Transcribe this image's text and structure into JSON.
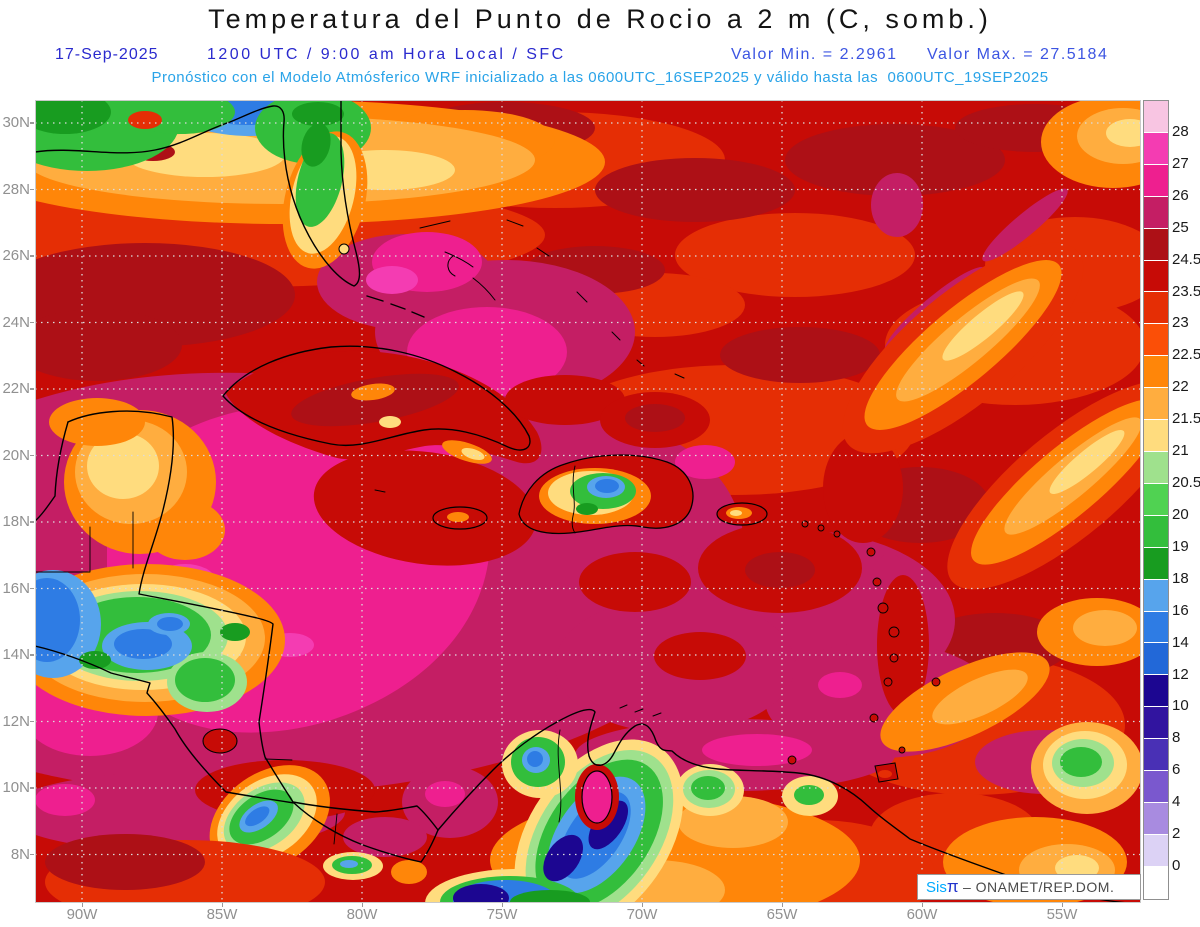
{
  "title": "Temperatura del Punto de Rocio a 2 m (C, somb.)",
  "header": {
    "date": "17-Sep-2025",
    "run_time": "1200 UTC / 9:00 am Hora Local / SFC",
    "valor_min": "Valor Min. = 2.2961",
    "valor_max": "Valor Max. = 27.5184",
    "forecast_line": "Pronóstico con el Modelo Atmósferico WRF inicializado a las 0600UTC_16SEP2025 y válido hasta las  0600UTC_19SEP2025"
  },
  "map": {
    "lat_labels": [
      "30N",
      "28N",
      "26N",
      "24N",
      "22N",
      "20N",
      "18N",
      "16N",
      "14N",
      "12N",
      "10N",
      "8N"
    ],
    "lon_labels": [
      "90W",
      "85W",
      "80W",
      "75W",
      "70W",
      "65W",
      "60W",
      "55W"
    ]
  },
  "colorbar": {
    "boundary_labels": [
      "28",
      "27",
      "26",
      "25",
      "24.5",
      "23.5",
      "23",
      "22.5",
      "22",
      "21.5",
      "21",
      "20.5",
      "20",
      "19",
      "18",
      "16",
      "14",
      "12",
      "10",
      "8",
      "6",
      "4",
      "2",
      "0"
    ],
    "segment_colors": [
      "#f8c5e2",
      "#f43cb2",
      "#ee1f8f",
      "#c41e64",
      "#ad1016",
      "#c70b06",
      "#e52e05",
      "#fb4f07",
      "#ff8609",
      "#ffad3f",
      "#ffdc7e",
      "#9fe18d",
      "#50d252",
      "#33be3c",
      "#189c20",
      "#57a4ec",
      "#2e7ce4",
      "#2268d8",
      "#1c0691",
      "#31149f",
      "#4930b5",
      "#7a58ce",
      "#a88be0",
      "#dcd2f5",
      "#ffffff"
    ]
  },
  "watermark": {
    "prefix": "Sis",
    "pi": "π",
    "suffix": " – ONAMET/REP.DOM."
  },
  "chart_data": {
    "type": "heatmap",
    "title": "Temperatura del Punto de Rocio a 2 m (C, somb.)",
    "x_ticks": [
      "90W",
      "85W",
      "80W",
      "75W",
      "70W",
      "65W",
      "60W",
      "55W"
    ],
    "y_ticks": [
      "30N",
      "28N",
      "26N",
      "24N",
      "22N",
      "20N",
      "18N",
      "16N",
      "14N",
      "12N",
      "10N",
      "8N"
    ],
    "colorbar_levels": [
      28,
      27,
      26,
      25,
      24.5,
      23.5,
      23,
      22.5,
      22,
      21.5,
      21,
      20.5,
      20,
      19,
      18,
      16,
      14,
      12,
      10,
      8,
      6,
      4,
      2,
      0
    ],
    "value_min": 2.2961,
    "value_max": 27.5184
  }
}
